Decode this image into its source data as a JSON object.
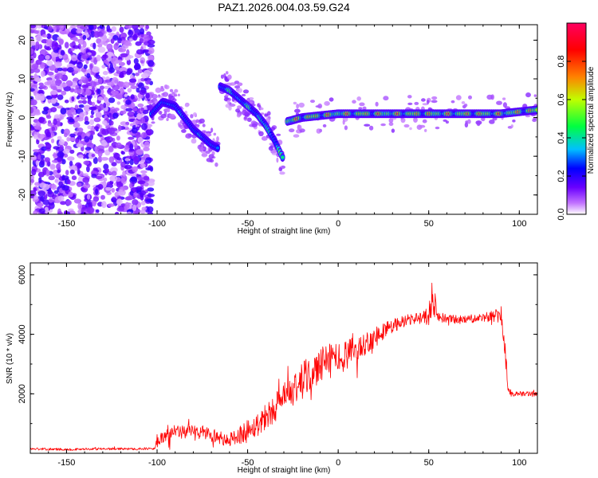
{
  "figure_title": "PAZ1.2026.004.03.59.G24",
  "chart_data": [
    {
      "type": "heatmap",
      "title": "PAZ1.2026.004.03.59.G24",
      "xlabel": "Height of straight line (km)",
      "ylabel": "Frequency (Hz)",
      "xlim": [
        -170,
        110
      ],
      "ylim": [
        -25,
        24
      ],
      "xticks": [
        -150,
        -100,
        -50,
        0,
        50,
        100
      ],
      "yticks": [
        -20,
        -10,
        0,
        10,
        20
      ],
      "colorbar": {
        "label": "Normalized spectral amplitude",
        "range": [
          0.0,
          1.0
        ],
        "ticks": [
          0.0,
          0.2,
          0.4,
          0.6,
          0.8
        ],
        "colors": [
          "#ffffff",
          "#c070ff",
          "#6a00ff",
          "#0000ff",
          "#00c0ff",
          "#00ff40",
          "#c0ff00",
          "#ff8000",
          "#ff0000",
          "#ff0060"
        ]
      },
      "features": [
        {
          "name": "noise region",
          "x_range": [
            -170,
            -103
          ],
          "freq_range": [
            -25,
            24
          ],
          "amplitude": 0.2
        },
        {
          "name": "signal segment",
          "x": [
            -103,
            -97,
            -90,
            -85,
            -80,
            -75,
            -70,
            -66
          ],
          "freq": [
            1,
            4,
            3,
            0,
            -3,
            -5,
            -7,
            -8
          ],
          "amplitude": 0.4
        },
        {
          "name": "signal segment",
          "x": [
            -65,
            -60,
            -55,
            -50,
            -45,
            -40,
            -35,
            -30
          ],
          "freq": [
            8,
            7,
            5,
            3,
            1,
            -2,
            -6,
            -11
          ],
          "amplitude": 0.55
        },
        {
          "name": "signal segment",
          "x": [
            -28,
            -20,
            -10,
            0,
            10,
            20,
            30,
            40,
            50,
            60,
            70,
            80,
            90,
            100,
            110
          ],
          "freq": [
            -1,
            0,
            0.5,
            1,
            1,
            1,
            1,
            1,
            1,
            1,
            1,
            1,
            1,
            1.5,
            2
          ],
          "amplitude": 0.85
        }
      ]
    },
    {
      "type": "line",
      "title": "",
      "xlabel": "Height of straight line (km)",
      "ylabel": "SNR (10 * v/v)",
      "xlim": [
        -170,
        110
      ],
      "ylim": [
        0,
        6400
      ],
      "xticks": [
        -150,
        -100,
        -50,
        0,
        50,
        100
      ],
      "yticks": [
        2000,
        4000,
        6000
      ],
      "series": [
        {
          "name": "SNR",
          "color": "#ff0000",
          "x": [
            -170,
            -150,
            -130,
            -110,
            -101,
            -100,
            -95,
            -90,
            -80,
            -70,
            -62,
            -55,
            -50,
            -45,
            -40,
            -35,
            -30,
            -25,
            -20,
            -15,
            -10,
            -5,
            0,
            5,
            10,
            15,
            20,
            25,
            30,
            35,
            40,
            45,
            50,
            52,
            55,
            60,
            70,
            80,
            85,
            90,
            92,
            94,
            96,
            100,
            110
          ],
          "y": [
            150,
            130,
            150,
            150,
            160,
            450,
            650,
            700,
            750,
            650,
            400,
            600,
            750,
            950,
            1250,
            1550,
            1800,
            2100,
            2400,
            2700,
            2900,
            3100,
            3200,
            3300,
            3500,
            3700,
            3900,
            4100,
            4300,
            4400,
            4500,
            4550,
            4600,
            5300,
            4600,
            4500,
            4500,
            4550,
            4600,
            4650,
            3500,
            2100,
            2000,
            2000,
            2000
          ],
          "noise_amplitude": [
            40,
            40,
            40,
            40,
            40,
            250,
            250,
            250,
            250,
            250,
            200,
            300,
            400,
            400,
            450,
            500,
            550,
            600,
            650,
            650,
            650,
            600,
            550,
            500,
            450,
            400,
            350,
            300,
            250,
            220,
            200,
            200,
            300,
            600,
            200,
            150,
            150,
            150,
            200,
            300,
            400,
            150,
            80,
            80,
            80
          ]
        }
      ]
    }
  ]
}
